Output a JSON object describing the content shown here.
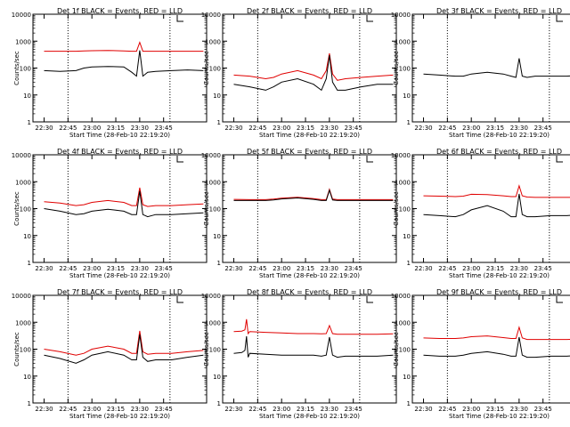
{
  "chart_data": {
    "type": "line",
    "layout": "3x3 grid",
    "yscale": "log",
    "ylim": [
      1,
      10000
    ],
    "xlim_minutes": [
      -7,
      102
    ],
    "ylabel": "Counts/sec",
    "xlabel": "Start Time (28-Feb-10 22:19:20)",
    "x_tick_labels": [
      "22:30",
      "22:45",
      "23:00",
      "23:15",
      "23:30",
      "23:45"
    ],
    "x_ticks_minutes": [
      0,
      15,
      30,
      45,
      60,
      75
    ],
    "y_tick_labels": [
      "1",
      "10",
      "100",
      "1000",
      "10000"
    ],
    "y_tick_values": [
      1,
      10,
      100,
      1000,
      10000
    ],
    "markers_minutes": [
      15,
      79
    ],
    "colors": {
      "events": "#000000",
      "lld": "#e00000",
      "markers": "#000000"
    },
    "series_legend": {
      "events": "BLACK = Events",
      "lld": "RED = LLD"
    },
    "panels": [
      {
        "title": "Det 1f BLACK = Events, RED = LLD",
        "x_minutes": [
          0,
          10,
          20,
          25,
          30,
          40,
          50,
          55,
          58,
          60,
          62,
          65,
          70,
          80,
          90,
          100
        ],
        "events": [
          80,
          75,
          80,
          100,
          110,
          115,
          110,
          70,
          50,
          450,
          50,
          70,
          75,
          80,
          85,
          80
        ],
        "lld": [
          420,
          420,
          420,
          430,
          440,
          450,
          430,
          420,
          420,
          900,
          420,
          420,
          420,
          420,
          420,
          420
        ]
      },
      {
        "title": "Det 2f BLACK = Events, RED = LLD",
        "x_minutes": [
          0,
          10,
          20,
          25,
          30,
          40,
          50,
          55,
          58,
          60,
          62,
          65,
          70,
          80,
          90,
          100
        ],
        "events": [
          25,
          20,
          15,
          20,
          30,
          40,
          25,
          15,
          40,
          300,
          30,
          15,
          15,
          20,
          25,
          25
        ],
        "lld": [
          55,
          50,
          40,
          45,
          60,
          80,
          55,
          40,
          80,
          350,
          60,
          35,
          40,
          45,
          50,
          55
        ]
      },
      {
        "title": "Det 3f BLACK = Events, RED = LLD",
        "x_minutes": [
          0,
          10,
          20,
          25,
          30,
          40,
          50,
          55,
          58,
          60,
          62,
          65,
          70,
          80,
          90,
          100
        ],
        "events": [
          60,
          55,
          50,
          50,
          60,
          70,
          60,
          50,
          45,
          230,
          50,
          45,
          50,
          50,
          50,
          55
        ],
        "lld": null
      },
      {
        "title": "Det 4f BLACK = Events, RED = LLD",
        "x_minutes": [
          0,
          10,
          20,
          25,
          30,
          40,
          50,
          55,
          58,
          60,
          62,
          65,
          70,
          80,
          90,
          100
        ],
        "events": [
          100,
          80,
          60,
          65,
          80,
          95,
          80,
          60,
          60,
          450,
          60,
          50,
          60,
          60,
          65,
          70
        ],
        "lld": [
          180,
          160,
          130,
          140,
          170,
          200,
          170,
          130,
          130,
          600,
          140,
          120,
          130,
          130,
          140,
          150
        ]
      },
      {
        "title": "Det 5f BLACK = Events, RED = LLD",
        "x_minutes": [
          0,
          10,
          20,
          25,
          30,
          40,
          50,
          55,
          58,
          60,
          62,
          65,
          70,
          80,
          90,
          100
        ],
        "events": [
          200,
          200,
          200,
          210,
          230,
          250,
          220,
          200,
          200,
          480,
          210,
          200,
          200,
          200,
          200,
          200
        ],
        "lld": [
          220,
          215,
          215,
          225,
          245,
          265,
          235,
          215,
          215,
          520,
          225,
          215,
          215,
          215,
          215,
          215
        ]
      },
      {
        "title": "Det 6f BLACK = Events, RED = LLD",
        "x_minutes": [
          0,
          10,
          20,
          25,
          30,
          40,
          50,
          55,
          58,
          60,
          62,
          65,
          70,
          80,
          90,
          100
        ],
        "events": [
          60,
          55,
          50,
          60,
          90,
          130,
          80,
          50,
          50,
          350,
          60,
          50,
          50,
          55,
          55,
          60
        ],
        "lld": [
          300,
          290,
          280,
          290,
          340,
          330,
          300,
          280,
          280,
          700,
          300,
          270,
          260,
          260,
          260,
          270
        ]
      },
      {
        "title": "Det 7f BLACK = Events, RED = LLD",
        "x_minutes": [
          0,
          10,
          20,
          25,
          30,
          40,
          50,
          55,
          58,
          60,
          62,
          65,
          70,
          80,
          90,
          100
        ],
        "events": [
          60,
          45,
          30,
          40,
          60,
          80,
          60,
          40,
          40,
          350,
          50,
          35,
          40,
          40,
          50,
          60
        ],
        "lld": [
          100,
          80,
          60,
          70,
          100,
          130,
          100,
          70,
          70,
          480,
          80,
          65,
          70,
          70,
          80,
          90
        ]
      },
      {
        "title": "Det 8f BLACK = Events, RED = LLD",
        "x_minutes": [
          0,
          5,
          7,
          8,
          9,
          10,
          20,
          30,
          40,
          50,
          55,
          58,
          60,
          62,
          65,
          70,
          80,
          90,
          100
        ],
        "events": [
          70,
          75,
          90,
          300,
          50,
          70,
          65,
          60,
          60,
          60,
          55,
          60,
          280,
          60,
          50,
          55,
          55,
          55,
          60
        ],
        "lld": [
          450,
          470,
          520,
          1300,
          380,
          450,
          420,
          400,
          380,
          380,
          370,
          380,
          750,
          380,
          360,
          360,
          360,
          360,
          370
        ]
      },
      {
        "title": "Det 9f BLACK = Events, RED = LLD",
        "x_minutes": [
          0,
          10,
          20,
          25,
          30,
          40,
          50,
          55,
          58,
          60,
          62,
          65,
          70,
          80,
          90,
          100
        ],
        "events": [
          60,
          55,
          55,
          60,
          70,
          80,
          65,
          55,
          55,
          280,
          60,
          50,
          50,
          55,
          55,
          60
        ],
        "lld": [
          260,
          250,
          250,
          260,
          290,
          310,
          270,
          250,
          250,
          650,
          260,
          230,
          230,
          230,
          230,
          240
        ]
      }
    ]
  }
}
